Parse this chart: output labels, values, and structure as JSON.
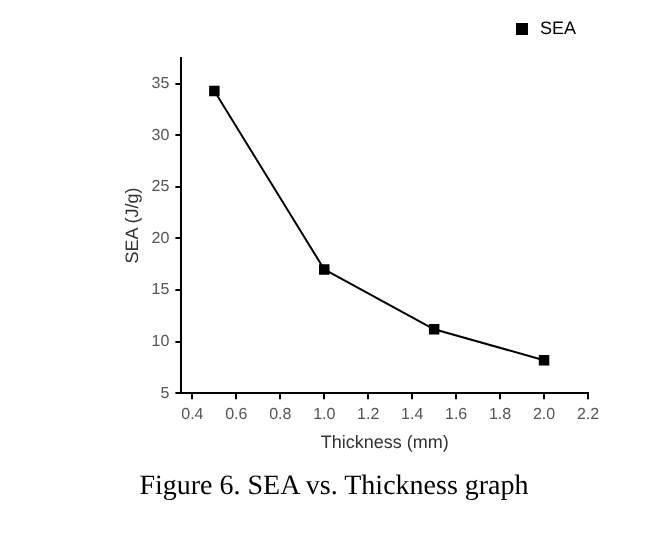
{
  "chart_data": {
    "type": "line",
    "xlabel": "Thickness (mm)",
    "ylabel": "SEA (J/g)",
    "annotations": [
      "Figure 6. SEA vs. Thickness graph"
    ],
    "x": [
      0.5,
      1.0,
      1.5,
      2.0
    ],
    "series": [
      {
        "name": "SEA",
        "color": "#000000",
        "values": [
          34.3,
          17.0,
          11.2,
          8.2
        ]
      }
    ],
    "xlim": [
      0.35,
      2.2
    ],
    "xticks": [
      0.4,
      0.6,
      0.8,
      {
        "value": 1,
        "label": "1.0"
      },
      1.2,
      1.4,
      1.6,
      1.8,
      {
        "value": 2,
        "label": "2.0"
      },
      2.2
    ],
    "ylim": [
      5,
      37.5
    ],
    "yticks": [
      5,
      10,
      15,
      20,
      25,
      30,
      35
    ],
    "grid": false,
    "legend": "top right",
    "marker": "square",
    "line_style": "solid"
  }
}
